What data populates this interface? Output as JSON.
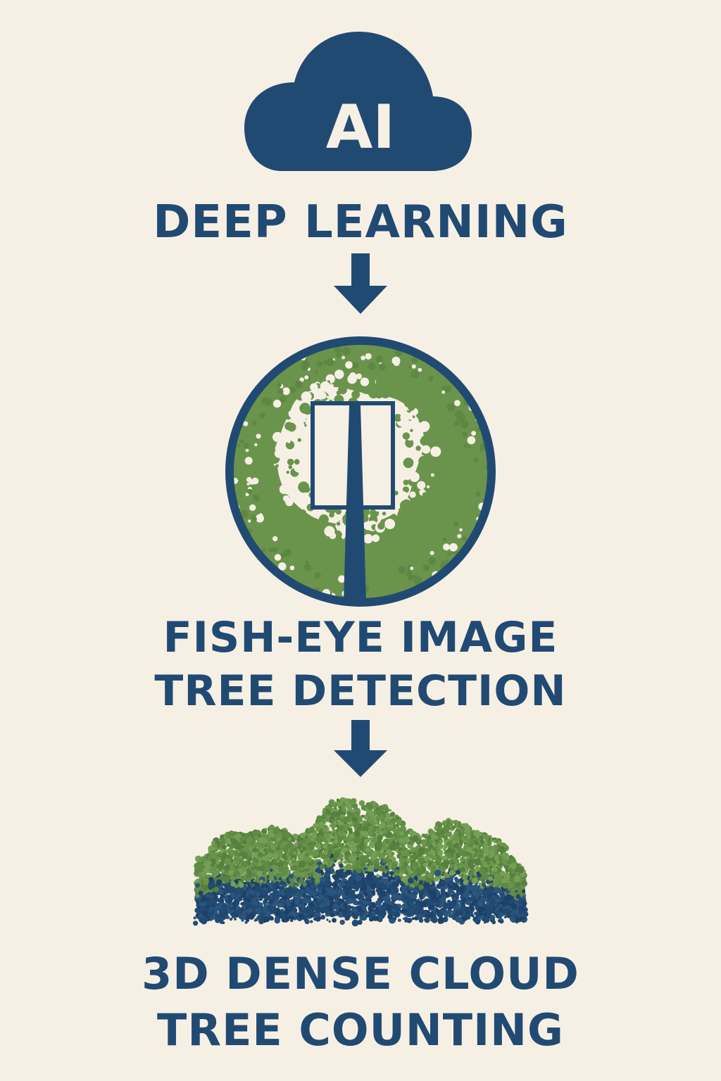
{
  "ai_badge": {
    "text": "AI",
    "icon": "cloud-icon"
  },
  "steps": [
    {
      "lines": [
        "DEEP LEARNING"
      ]
    },
    {
      "lines": [
        "FISH-EYE IMAGE",
        "TREE DETECTION"
      ],
      "icon": "fisheye-tree-detection-icon"
    },
    {
      "lines": [
        "3D DENSE CLOUD",
        "TREE COUNTING"
      ],
      "icon": "point-cloud-trees-icon"
    }
  ],
  "connectors": [
    "arrow-down-icon",
    "arrow-down-icon"
  ],
  "colors": {
    "primary": "#214a73",
    "green": "#6a944c",
    "background": "#f6f0e4"
  }
}
